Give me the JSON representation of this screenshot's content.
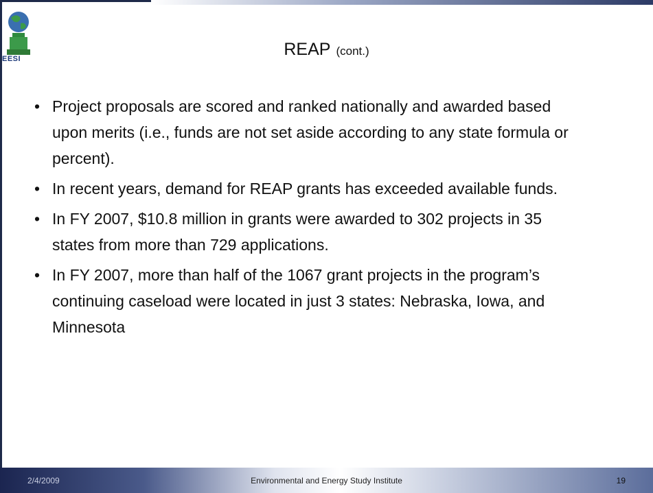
{
  "logo_text": "EESI",
  "header": {
    "title": "REAP",
    "subtitle": "(cont.)"
  },
  "bullets": [
    "Project proposals are scored and ranked nationally and awarded based upon merits (i.e., funds are not set aside according to any state formula or percent).",
    "In recent years, demand for REAP grants has exceeded available funds.",
    "In FY 2007, $10.8 million in grants were awarded to 302 projects in 35 states from more than 729 applications.",
    "In FY 2007, more than half of the 1067 grant projects in the program’s continuing caseload were located in just 3 states: Nebraska, Iowa, and Minnesota"
  ],
  "footer": {
    "date": "2/4/2009",
    "organization": "Environmental and Energy Study Institute",
    "page": "19"
  }
}
